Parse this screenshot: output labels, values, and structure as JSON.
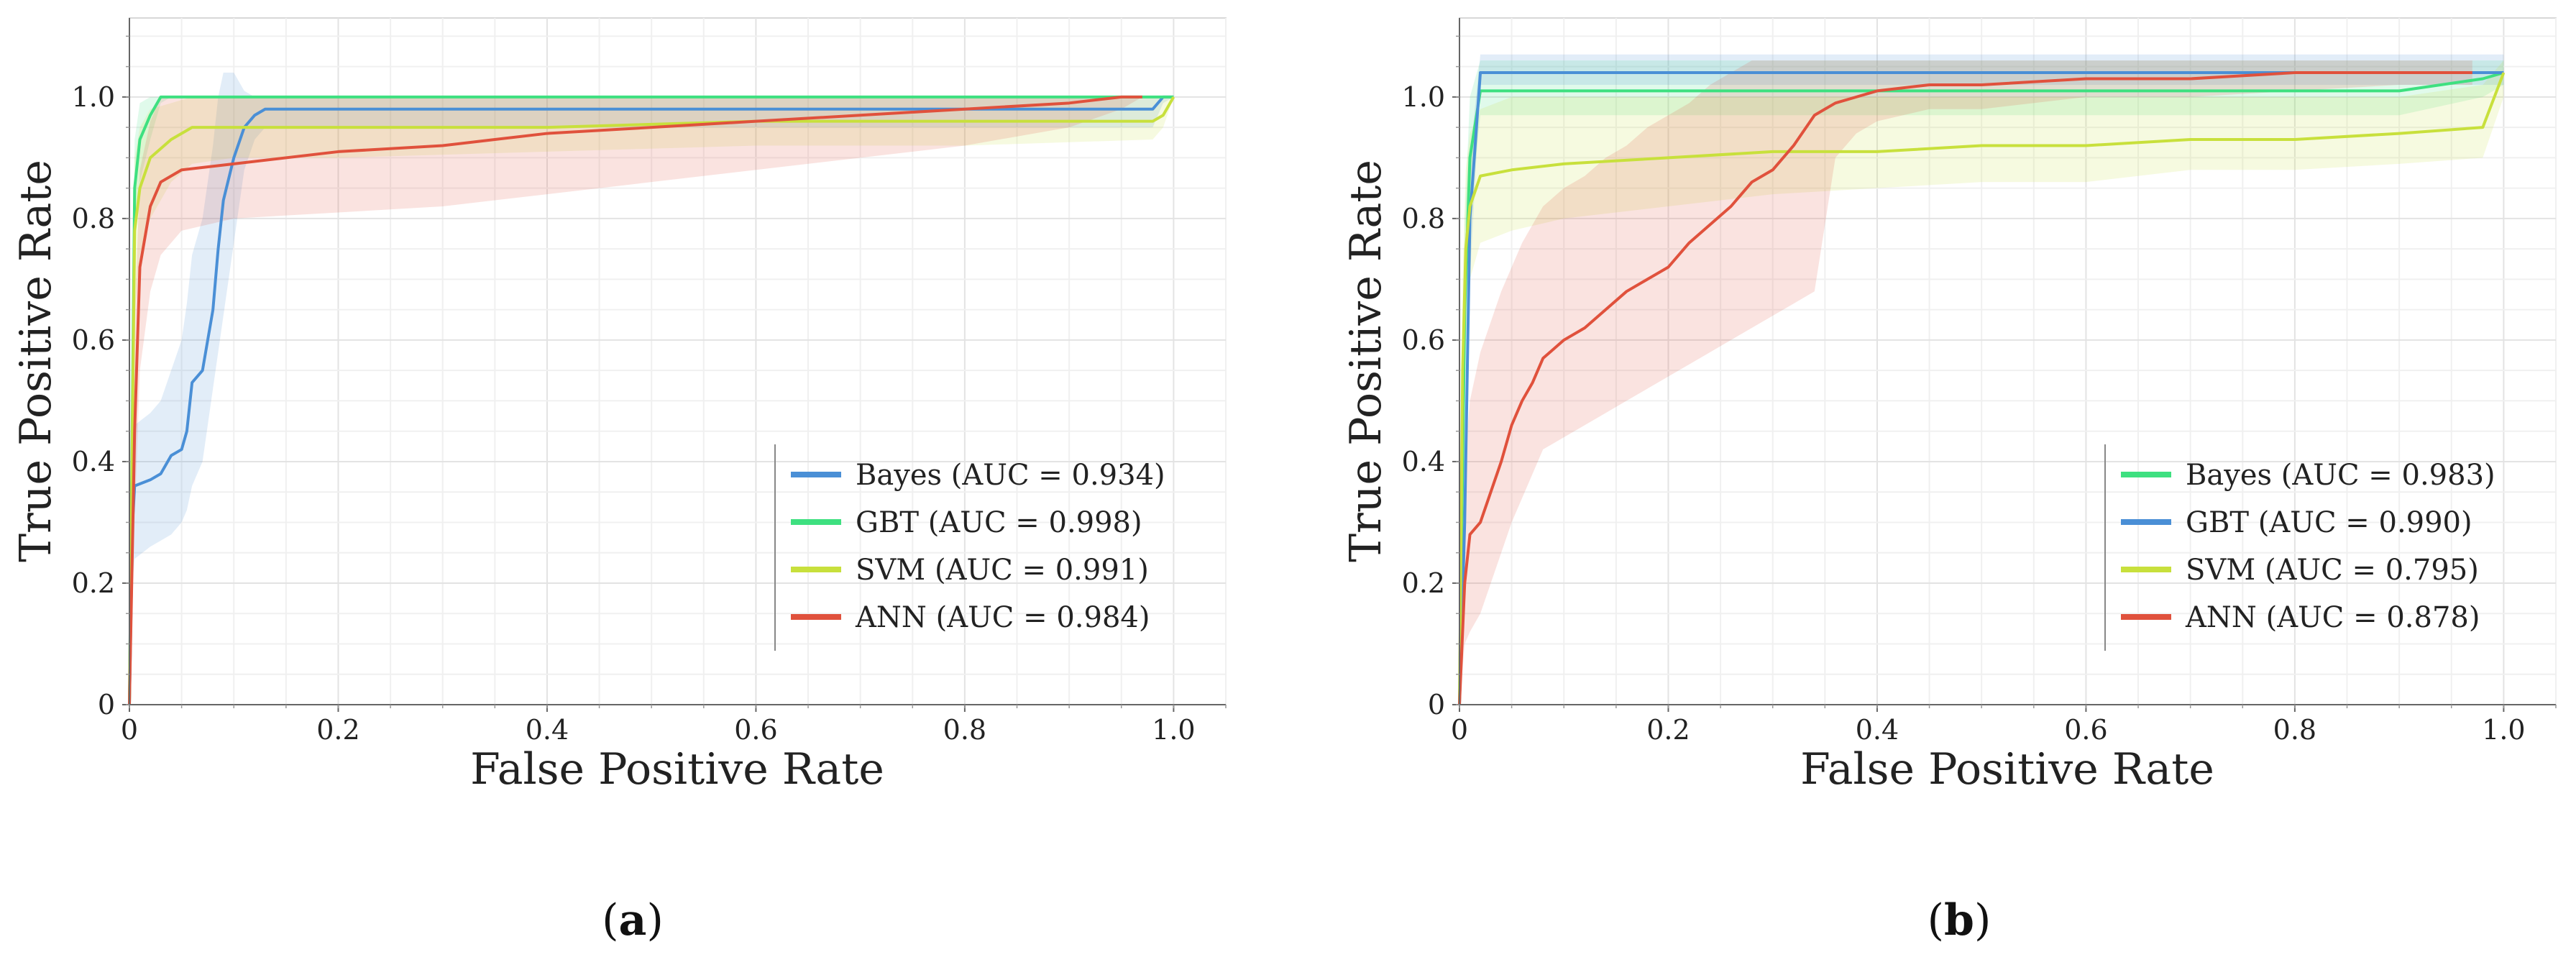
{
  "chart_data": [
    {
      "type": "line",
      "panel": "a",
      "caption_open": "(",
      "caption_letter": "a",
      "caption_close": ")",
      "xlabel": "False Positive Rate",
      "ylabel": "True Positive Rate",
      "xlim": [
        0,
        1.05
      ],
      "ylim": [
        0,
        1.13
      ],
      "xticks": [
        0,
        0.2,
        0.4,
        0.6,
        0.8,
        1.0
      ],
      "xtick_labels": [
        "0",
        "0.2",
        "0.4",
        "0.6",
        "0.8",
        "1.0"
      ],
      "yticks": [
        0,
        0.2,
        0.4,
        0.6,
        0.8,
        1.0
      ],
      "ytick_labels": [
        "0",
        "0.2",
        "0.4",
        "0.6",
        "0.8",
        "1.0"
      ],
      "grid": true,
      "legend_position": "lower-right",
      "series": [
        {
          "name": "Bayes (AUC = 0.934)",
          "color": "#4a8fd6",
          "x": [
            0,
            0.003,
            0.005,
            0.02,
            0.03,
            0.04,
            0.05,
            0.055,
            0.06,
            0.07,
            0.075,
            0.08,
            0.085,
            0.09,
            0.1,
            0.11,
            0.12,
            0.13,
            0.98,
            0.99,
            1.0
          ],
          "y": [
            0,
            0.3,
            0.36,
            0.37,
            0.38,
            0.41,
            0.42,
            0.45,
            0.53,
            0.55,
            0.6,
            0.65,
            0.75,
            0.83,
            0.9,
            0.95,
            0.97,
            0.98,
            0.98,
            1.0,
            1.0
          ],
          "upper": [
            0,
            0.42,
            0.46,
            0.48,
            0.5,
            0.55,
            0.6,
            0.66,
            0.74,
            0.8,
            0.86,
            0.92,
            1.0,
            1.04,
            1.04,
            1.01,
            1.0,
            1.0,
            1.0,
            1.0,
            1.0
          ],
          "lower": [
            0,
            0.2,
            0.24,
            0.26,
            0.27,
            0.28,
            0.3,
            0.32,
            0.36,
            0.4,
            0.46,
            0.52,
            0.58,
            0.64,
            0.76,
            0.88,
            0.93,
            0.95,
            0.95,
            0.99,
            1.0
          ]
        },
        {
          "name": "GBT (AUC = 0.998)",
          "color": "#3ee080",
          "x": [
            0,
            0.005,
            0.01,
            0.02,
            0.03,
            0.04,
            1.0
          ],
          "y": [
            0,
            0.85,
            0.93,
            0.97,
            1.0,
            1.0,
            1.0
          ],
          "upper": [
            0,
            0.93,
            0.99,
            1.0,
            1.0,
            1.0,
            1.0
          ],
          "lower": [
            0,
            0.75,
            0.86,
            0.93,
            0.99,
            1.0,
            1.0
          ]
        },
        {
          "name": "SVM (AUC = 0.991)",
          "color": "#c8e03c",
          "x": [
            0,
            0.005,
            0.01,
            0.02,
            0.04,
            0.06,
            0.1,
            0.2,
            0.4,
            0.6,
            0.8,
            0.98,
            0.99,
            1.0
          ],
          "y": [
            0,
            0.78,
            0.85,
            0.9,
            0.93,
            0.95,
            0.95,
            0.95,
            0.95,
            0.96,
            0.96,
            0.96,
            0.97,
            1.0
          ],
          "upper": [
            0,
            0.9,
            0.95,
            0.98,
            0.99,
            1.0,
            1.0,
            1.0,
            1.0,
            1.0,
            1.0,
            1.0,
            1.0,
            1.0
          ],
          "lower": [
            0,
            0.64,
            0.74,
            0.8,
            0.86,
            0.89,
            0.9,
            0.9,
            0.91,
            0.92,
            0.92,
            0.93,
            0.95,
            1.0
          ]
        },
        {
          "name": "ANN (AUC = 0.984)",
          "color": "#e0513c",
          "x": [
            0,
            0.005,
            0.01,
            0.02,
            0.03,
            0.05,
            0.1,
            0.2,
            0.3,
            0.35,
            0.4,
            0.5,
            0.6,
            0.7,
            0.8,
            0.9,
            0.95,
            0.97
          ],
          "y": [
            0,
            0.45,
            0.72,
            0.82,
            0.86,
            0.88,
            0.89,
            0.91,
            0.92,
            0.93,
            0.94,
            0.95,
            0.96,
            0.97,
            0.98,
            0.99,
            1.0,
            1.0
          ],
          "upper": [
            0,
            0.62,
            0.88,
            0.96,
            1.0,
            1.0,
            1.0,
            1.0,
            1.0,
            1.0,
            1.0,
            1.0,
            1.0,
            1.0,
            1.0,
            1.0,
            1.0,
            1.0
          ],
          "lower": [
            0,
            0.3,
            0.55,
            0.68,
            0.74,
            0.78,
            0.8,
            0.81,
            0.82,
            0.83,
            0.84,
            0.86,
            0.88,
            0.9,
            0.92,
            0.95,
            0.98,
            1.0
          ]
        }
      ]
    },
    {
      "type": "line",
      "panel": "b",
      "caption_open": "(",
      "caption_letter": "b",
      "caption_close": ")",
      "xlabel": "False Positive Rate",
      "ylabel": "True Positive Rate",
      "xlim": [
        0,
        1.05
      ],
      "ylim": [
        0,
        1.13
      ],
      "xticks": [
        0,
        0.2,
        0.4,
        0.6,
        0.8,
        1.0
      ],
      "xtick_labels": [
        "0",
        "0.2",
        "0.4",
        "0.6",
        "0.8",
        "1.0"
      ],
      "yticks": [
        0,
        0.2,
        0.4,
        0.6,
        0.8,
        1.0
      ],
      "ytick_labels": [
        "0",
        "0.2",
        "0.4",
        "0.6",
        "0.8",
        "1.0"
      ],
      "grid": true,
      "legend_position": "lower-right",
      "series": [
        {
          "name": "Bayes (AUC = 0.983)",
          "color": "#3ee080",
          "x": [
            0,
            0.005,
            0.01,
            0.02,
            0.5,
            0.9,
            0.98,
            1.0
          ],
          "y": [
            0,
            0.65,
            0.9,
            1.01,
            1.01,
            1.01,
            1.03,
            1.04
          ],
          "upper": [
            0,
            0.8,
            1.0,
            1.06,
            1.06,
            1.06,
            1.06,
            1.06
          ],
          "lower": [
            0,
            0.5,
            0.8,
            0.97,
            0.97,
            0.97,
            1.0,
            1.02
          ]
        },
        {
          "name": "GBT (AUC = 0.990)",
          "color": "#4a8fd6",
          "x": [
            0,
            0.005,
            0.01,
            0.02,
            0.6,
            1.0
          ],
          "y": [
            0,
            0.3,
            0.8,
            1.04,
            1.04,
            1.04
          ],
          "upper": [
            0,
            0.4,
            0.9,
            1.07,
            1.07,
            1.07
          ],
          "lower": [
            0,
            0.2,
            0.7,
            1.02,
            1.02,
            1.02
          ]
        },
        {
          "name": "SVM (AUC = 0.795)",
          "color": "#c8e03c",
          "x": [
            0,
            0.003,
            0.006,
            0.01,
            0.02,
            0.05,
            0.1,
            0.2,
            0.3,
            0.4,
            0.5,
            0.6,
            0.7,
            0.8,
            0.9,
            0.98,
            1.0
          ],
          "y": [
            0,
            0.55,
            0.75,
            0.82,
            0.87,
            0.88,
            0.89,
            0.9,
            0.91,
            0.91,
            0.92,
            0.92,
            0.93,
            0.93,
            0.94,
            0.95,
            1.04
          ],
          "upper": [
            0,
            0.7,
            0.88,
            0.94,
            0.98,
            1.0,
            1.0,
            1.0,
            1.0,
            1.0,
            1.0,
            1.0,
            1.0,
            1.0,
            1.0,
            1.02,
            1.06
          ],
          "lower": [
            0,
            0.4,
            0.6,
            0.7,
            0.76,
            0.78,
            0.8,
            0.82,
            0.84,
            0.85,
            0.86,
            0.86,
            0.88,
            0.88,
            0.89,
            0.9,
            1.0
          ]
        },
        {
          "name": "ANN (AUC = 0.878)",
          "color": "#e0513c",
          "x": [
            0,
            0.005,
            0.01,
            0.02,
            0.03,
            0.04,
            0.05,
            0.06,
            0.07,
            0.08,
            0.1,
            0.12,
            0.14,
            0.16,
            0.18,
            0.2,
            0.22,
            0.24,
            0.26,
            0.28,
            0.3,
            0.32,
            0.34,
            0.36,
            0.38,
            0.4,
            0.45,
            0.5,
            0.6,
            0.7,
            0.8,
            0.9,
            0.97
          ],
          "y": [
            0,
            0.2,
            0.28,
            0.3,
            0.35,
            0.4,
            0.46,
            0.5,
            0.53,
            0.57,
            0.6,
            0.62,
            0.65,
            0.68,
            0.7,
            0.72,
            0.76,
            0.79,
            0.82,
            0.86,
            0.88,
            0.92,
            0.97,
            0.99,
            1.0,
            1.01,
            1.02,
            1.02,
            1.03,
            1.03,
            1.04,
            1.04,
            1.04
          ],
          "upper": [
            0,
            0.4,
            0.5,
            0.58,
            0.63,
            0.68,
            0.72,
            0.76,
            0.79,
            0.82,
            0.85,
            0.87,
            0.9,
            0.92,
            0.95,
            0.97,
            0.99,
            1.02,
            1.04,
            1.06,
            1.06,
            1.06,
            1.06,
            1.06,
            1.06,
            1.06,
            1.06,
            1.06,
            1.06,
            1.06,
            1.06,
            1.06,
            1.06
          ],
          "lower": [
            0,
            0.1,
            0.12,
            0.15,
            0.2,
            0.25,
            0.3,
            0.34,
            0.38,
            0.42,
            0.44,
            0.46,
            0.48,
            0.5,
            0.52,
            0.54,
            0.56,
            0.58,
            0.6,
            0.62,
            0.64,
            0.66,
            0.68,
            0.9,
            0.94,
            0.96,
            0.98,
            0.98,
            1.0,
            1.0,
            1.01,
            1.02,
            1.02
          ]
        }
      ]
    }
  ]
}
